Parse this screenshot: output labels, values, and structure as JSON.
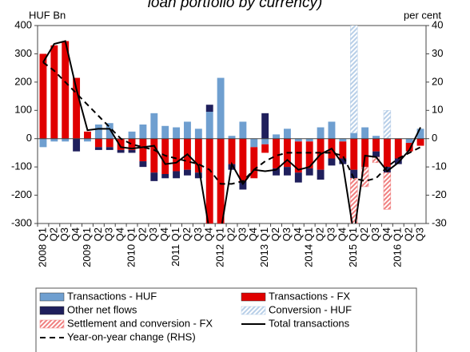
{
  "chart_data": {
    "type": "bar",
    "title": "loan portfolio by currency)",
    "y_label": "HUF Bn",
    "y2_label": "per cent",
    "categories": [
      "2008 Q1",
      "Q2",
      "Q3",
      "Q4",
      "2009 Q1",
      "Q2",
      "Q3",
      "Q4",
      "2010 Q1",
      "Q2",
      "Q3",
      "Q4",
      "2011 Q1",
      "Q2",
      "Q3",
      "Q4",
      "2012 Q1",
      "Q2",
      "Q3",
      "Q4",
      "2013 Q1",
      "Q2",
      "Q3",
      "Q4",
      "2014 Q1",
      "Q2",
      "Q3",
      "Q4",
      "2015 Q1",
      "Q2",
      "Q3",
      "Q4",
      "2016 Q1",
      "Q2",
      "Q3"
    ],
    "ylim": [
      -300,
      400
    ],
    "yticks": [
      -300,
      -200,
      -100,
      0,
      100,
      200,
      300,
      400
    ],
    "y2lim": [
      -30,
      40
    ],
    "y2ticks": [
      -30,
      -20,
      -10,
      0,
      10,
      20,
      30,
      40
    ],
    "grid": false,
    "series": [
      {
        "name": "Transactions - HUF",
        "type": "bar",
        "color": "#6f9fd0",
        "values": [
          -30,
          -10,
          -10,
          0,
          -10,
          50,
          55,
          0,
          25,
          50,
          90,
          45,
          40,
          60,
          35,
          95,
          215,
          10,
          60,
          -30,
          -20,
          15,
          35,
          -10,
          -10,
          40,
          60,
          -10,
          20,
          40,
          10,
          0,
          0,
          -15,
          35
        ]
      },
      {
        "name": "Transactions - FX",
        "type": "bar",
        "color": "#e00000",
        "values": [
          300,
          330,
          345,
          215,
          25,
          -30,
          -30,
          -40,
          -40,
          -80,
          -120,
          -125,
          -115,
          -110,
          -120,
          -350,
          -350,
          -90,
          -150,
          -110,
          -30,
          -105,
          -100,
          -110,
          -95,
          -110,
          -70,
          -60,
          -110,
          -100,
          -45,
          -100,
          -70,
          -30,
          -25
        ]
      },
      {
        "name": "Other net flows",
        "type": "bar",
        "color": "#1f1f5c",
        "values": [
          0,
          0,
          0,
          -45,
          0,
          -10,
          -10,
          -10,
          -10,
          -20,
          -30,
          -15,
          -25,
          -20,
          -20,
          25,
          0,
          -20,
          -30,
          0,
          90,
          -25,
          -30,
          -35,
          -25,
          -35,
          -25,
          -20,
          -30,
          0,
          -20,
          -20,
          -20,
          0,
          0
        ]
      },
      {
        "name": "Conversion - HUF",
        "type": "bar",
        "color": "#b8cfe8",
        "hatch": true,
        "values": [
          0,
          0,
          0,
          0,
          0,
          0,
          0,
          0,
          0,
          0,
          0,
          0,
          0,
          0,
          0,
          0,
          0,
          0,
          0,
          0,
          0,
          0,
          0,
          0,
          0,
          0,
          0,
          0,
          400,
          0,
          0,
          100,
          0,
          0,
          0
        ]
      },
      {
        "name": "Settlement and conversion - FX",
        "type": "bar",
        "color": "#f08080",
        "hatch": true,
        "values": [
          0,
          0,
          0,
          0,
          0,
          0,
          0,
          0,
          0,
          0,
          0,
          0,
          0,
          0,
          0,
          0,
          0,
          0,
          0,
          0,
          0,
          0,
          0,
          0,
          0,
          0,
          0,
          0,
          -200,
          -70,
          -20,
          -130,
          0,
          0,
          0
        ]
      },
      {
        "name": "Total transactions",
        "type": "line",
        "color": "#000000",
        "values": [
          270,
          335,
          345,
          175,
          30,
          35,
          35,
          -30,
          -35,
          -30,
          -25,
          -90,
          -85,
          -55,
          -95,
          -330,
          -330,
          -90,
          -160,
          -110,
          -115,
          -110,
          -75,
          -110,
          -100,
          -55,
          -35,
          -90,
          -340,
          -60,
          -65,
          -115,
          -85,
          -40,
          40
        ]
      },
      {
        "name": "Year-on-year change (RHS)",
        "type": "line",
        "axis": "y2",
        "dash": true,
        "color": "#000000",
        "values": [
          27,
          24,
          20,
          16,
          12,
          8,
          4,
          0,
          -2,
          -3,
          -4,
          -6,
          -7,
          -8,
          -9,
          -11,
          -16,
          -16,
          -15,
          -11,
          -8,
          -6,
          -5,
          -5,
          -5,
          -5,
          -5,
          -6,
          -14,
          -15,
          -14,
          -10,
          -7,
          -5,
          -3
        ]
      }
    ]
  }
}
